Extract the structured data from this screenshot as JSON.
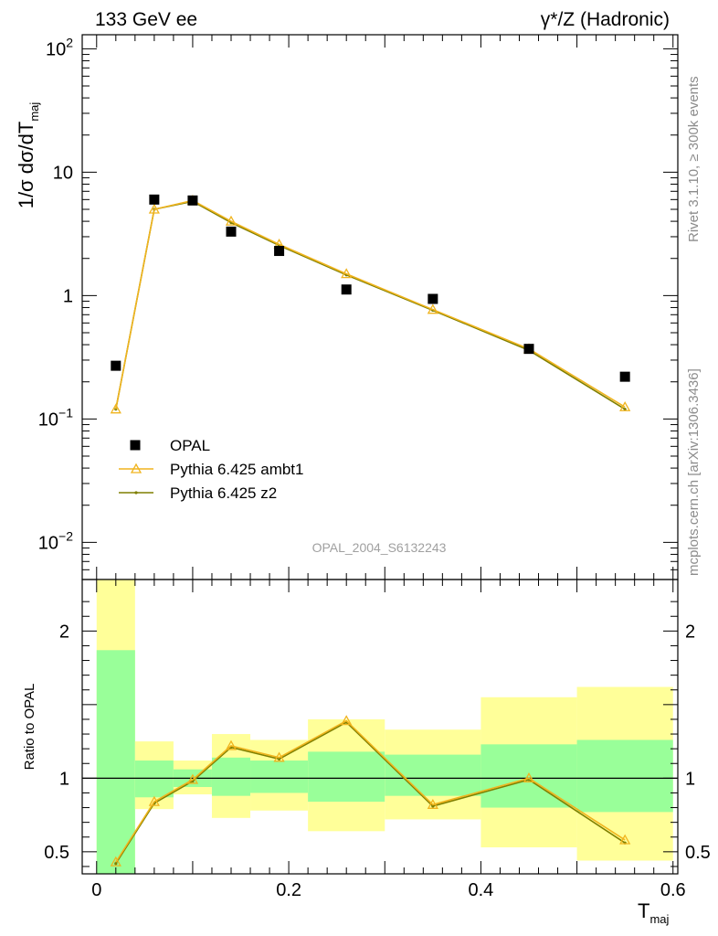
{
  "header": {
    "left_title": "133 GeV ee",
    "right_title": "γ*/Z (Hadronic)"
  },
  "side_labels": {
    "rivet": "Rivet 3.1.10, ≥ 300k events",
    "mcplots": "mcplots.cern.ch [arXiv:1306.3436]"
  },
  "watermark": "OPAL_2004_S6132243",
  "chart_data": [
    {
      "type": "scatter",
      "panel": "main",
      "ylabel": "1/σ dσ/dT",
      "ylabel_sub": "maj",
      "yscale": "log",
      "ylim": [
        0.005,
        130
      ],
      "xlim": [
        -0.015,
        0.605
      ],
      "yticks": [
        {
          "value": 0.01,
          "base": "10",
          "exp": "−2"
        },
        {
          "value": 0.1,
          "base": "10",
          "exp": "−1"
        },
        {
          "value": 1,
          "base": "1",
          "exp": ""
        },
        {
          "value": 10,
          "base": "10",
          "exp": ""
        },
        {
          "value": 100,
          "base": "10",
          "exp": "2"
        }
      ],
      "legend_position": "lower-left",
      "series": [
        {
          "name": "OPAL",
          "marker": "square",
          "color": "#000000",
          "x": [
            0.02,
            0.06,
            0.1,
            0.14,
            0.19,
            0.26,
            0.35,
            0.45,
            0.55
          ],
          "y": [
            0.27,
            6.0,
            5.9,
            3.3,
            2.3,
            1.12,
            0.94,
            0.37,
            0.22
          ]
        },
        {
          "name": "Pythia 6.425 ambt1",
          "marker": "triangle",
          "color": "#f0b41e",
          "x": [
            0.02,
            0.06,
            0.1,
            0.14,
            0.19,
            0.26,
            0.35,
            0.45,
            0.55
          ],
          "y": [
            0.12,
            5.0,
            5.9,
            4.0,
            2.6,
            1.5,
            0.77,
            0.37,
            0.125
          ]
        },
        {
          "name": "Pythia 6.425 z2",
          "marker": "dot",
          "color": "#7f7f00",
          "x": [
            0.02,
            0.06,
            0.1,
            0.14,
            0.19,
            0.26,
            0.35,
            0.45,
            0.55
          ],
          "y": [
            0.12,
            5.0,
            5.8,
            3.9,
            2.55,
            1.47,
            0.76,
            0.36,
            0.12
          ]
        }
      ]
    },
    {
      "type": "line",
      "panel": "ratio",
      "ylabel": "Ratio to OPAL",
      "xlabel": "T",
      "xlabel_sub": "maj",
      "ylim": [
        0.35,
        2.35
      ],
      "xlim": [
        -0.015,
        0.605
      ],
      "yticks": [
        0.5,
        1,
        2
      ],
      "xticks": [
        0,
        0.2,
        0.4,
        0.6
      ],
      "xtick_labels": [
        "0",
        "0.2",
        "0.4",
        "0.6"
      ],
      "ytick_labels": [
        "0.5",
        "1",
        "2"
      ],
      "bands": [
        {
          "x0": 0.0,
          "x1": 0.04,
          "green": [
            0.35,
            1.87
          ],
          "yellow": [
            0.35,
            2.35
          ]
        },
        {
          "x0": 0.04,
          "x1": 0.08,
          "green": [
            0.87,
            1.12
          ],
          "yellow": [
            0.79,
            1.25
          ]
        },
        {
          "x0": 0.08,
          "x1": 0.12,
          "green": [
            0.94,
            1.06
          ],
          "yellow": [
            0.89,
            1.12
          ]
        },
        {
          "x0": 0.12,
          "x1": 0.16,
          "green": [
            0.88,
            1.14
          ],
          "yellow": [
            0.73,
            1.3
          ]
        },
        {
          "x0": 0.16,
          "x1": 0.22,
          "green": [
            0.9,
            1.12
          ],
          "yellow": [
            0.78,
            1.26
          ]
        },
        {
          "x0": 0.22,
          "x1": 0.3,
          "green": [
            0.84,
            1.18
          ],
          "yellow": [
            0.64,
            1.4
          ]
        },
        {
          "x0": 0.3,
          "x1": 0.4,
          "green": [
            0.88,
            1.16
          ],
          "yellow": [
            0.72,
            1.33
          ]
        },
        {
          "x0": 0.4,
          "x1": 0.5,
          "green": [
            0.8,
            1.23
          ],
          "yellow": [
            0.53,
            1.55
          ]
        },
        {
          "x0": 0.5,
          "x1": 0.6,
          "green": [
            0.77,
            1.26
          ],
          "yellow": [
            0.44,
            1.62
          ]
        }
      ],
      "series": [
        {
          "name": "Pythia 6.425 ambt1",
          "marker": "triangle",
          "color": "#f0b41e",
          "x": [
            0.02,
            0.06,
            0.1,
            0.14,
            0.19,
            0.26,
            0.35,
            0.45,
            0.55
          ],
          "y": [
            0.43,
            0.84,
            0.99,
            1.22,
            1.14,
            1.39,
            0.82,
            1.0,
            0.58
          ]
        },
        {
          "name": "Pythia 6.425 z2",
          "marker": "dot",
          "color": "#7f7f00",
          "x": [
            0.02,
            0.06,
            0.1,
            0.14,
            0.19,
            0.26,
            0.35,
            0.45,
            0.55
          ],
          "y": [
            0.42,
            0.83,
            0.98,
            1.21,
            1.13,
            1.38,
            0.81,
            0.99,
            0.56
          ]
        }
      ]
    }
  ],
  "colors": {
    "band_green": "#99ff99",
    "band_yellow": "#ffff99"
  }
}
